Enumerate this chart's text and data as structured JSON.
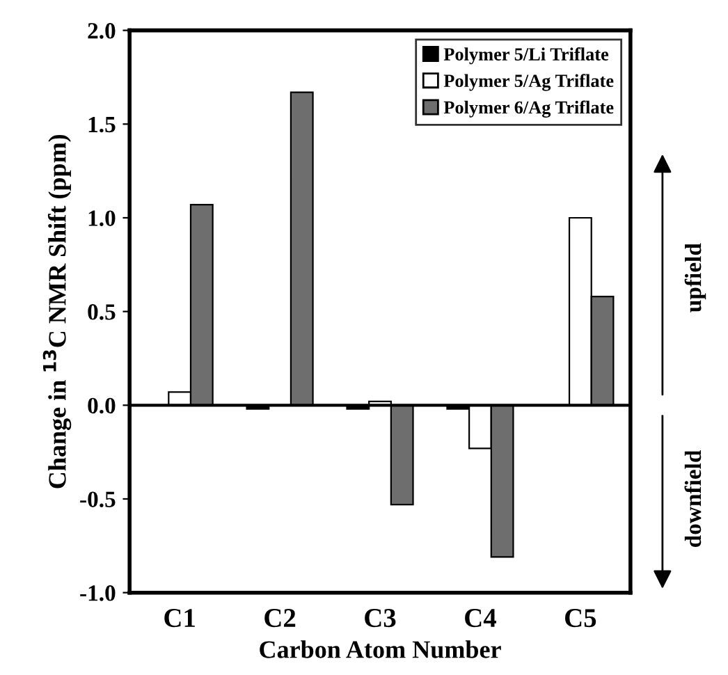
{
  "chart_data": {
    "type": "bar",
    "xlabel": "Carbon Atom Number",
    "ylabel": "Change in $^{13}$C NMR Shift (ppm)",
    "categories": [
      "C1",
      "C2",
      "C3",
      "C4",
      "C5"
    ],
    "series": [
      {
        "name": "Polymer 5/Li Triflate",
        "color": "#000000",
        "values": [
          null,
          -0.02,
          -0.02,
          -0.02,
          null
        ]
      },
      {
        "name": "Polymer 5/Ag Triflate",
        "color": "#ffffff",
        "values": [
          0.07,
          null,
          0.02,
          -0.23,
          1.0
        ]
      },
      {
        "name": "Polymer 6/Ag Triflate",
        "color": "#6e6e6e",
        "values": [
          1.07,
          1.67,
          -0.53,
          -0.81,
          0.58
        ]
      }
    ],
    "ylim": [
      -1.0,
      2.0
    ],
    "yticks": [
      {
        "value": -1.0,
        "label": "-1.0"
      },
      {
        "value": -0.5,
        "label": "-0.5"
      },
      {
        "value": 0.0,
        "label": "0.0"
      },
      {
        "value": 0.5,
        "label": "0.5"
      },
      {
        "value": 1.0,
        "label": "1.0"
      },
      {
        "value": 1.5,
        "label": "1.5"
      },
      {
        "value": 2.0,
        "label": "2.0"
      }
    ],
    "ref_lines": [
      {
        "axis": "y",
        "value": 0.0,
        "label": null,
        "color": "#000000"
      }
    ],
    "annotations": [
      "upfield",
      "downfield"
    ],
    "legend": "top right",
    "grid": false
  }
}
